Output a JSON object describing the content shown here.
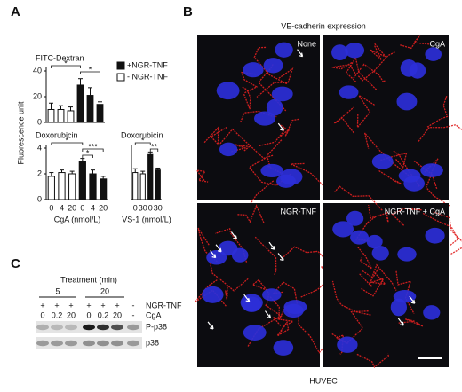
{
  "panel_a": {
    "label": "A",
    "ylabel": "Fluorescence unit"
  },
  "chart_data": [
    {
      "type": "bar",
      "title": "FITC-Dextran",
      "categories": [
        null,
        null,
        null,
        null,
        null,
        null
      ],
      "series": [
        {
          "name": "+NGR-TNF",
          "color": "#111111",
          "values": [
            null,
            null,
            null,
            29,
            21,
            14
          ],
          "errors": [
            null,
            null,
            null,
            5,
            6,
            2
          ]
        },
        {
          "name": "- NGR-TNF",
          "color": "#ffffff",
          "values": [
            10,
            10,
            9,
            null,
            null,
            null
          ],
          "errors": [
            5,
            3,
            3,
            null,
            null,
            null
          ]
        }
      ],
      "ylim": [
        0,
        40
      ],
      "yticks": [
        0,
        20,
        40
      ],
      "legend": "right",
      "annotations": [
        {
          "text": "*",
          "between": [
            0,
            3
          ]
        },
        {
          "text": "*",
          "between": [
            3,
            5
          ]
        }
      ]
    },
    {
      "type": "bar",
      "title": "Doxorubicin",
      "categories": [
        "0",
        "4",
        "20",
        "0",
        "4",
        "20"
      ],
      "xlabel": "CgA (nmol/L)",
      "series": [
        {
          "name": "+NGR-TNF",
          "color": "#111111",
          "values": [
            null,
            null,
            null,
            3.0,
            2.0,
            1.6
          ],
          "errors": [
            null,
            null,
            null,
            0.2,
            0.3,
            0.2
          ]
        },
        {
          "name": "- NGR-TNF",
          "color": "#ffffff",
          "values": [
            1.8,
            2.1,
            2.0,
            null,
            null,
            null
          ],
          "errors": [
            0.3,
            0.2,
            0.2,
            null,
            null,
            null
          ]
        }
      ],
      "ylim": [
        0,
        4
      ],
      "yticks": [
        0,
        2,
        4
      ],
      "annotations": [
        {
          "text": "*",
          "between": [
            0,
            3
          ]
        },
        {
          "text": "***",
          "between": [
            3,
            5
          ]
        },
        {
          "text": "*",
          "between": [
            3,
            4
          ]
        }
      ]
    },
    {
      "type": "bar",
      "title": "Doxorubicin",
      "categories": [
        "0",
        "30",
        "0",
        "30"
      ],
      "xlabel": "VS-1 (nmol/L)",
      "series": [
        {
          "name": "+NGR-TNF",
          "color": "#111111",
          "values": [
            null,
            null,
            3.5,
            2.3
          ],
          "errors": [
            null,
            null,
            0.2,
            0.15
          ]
        },
        {
          "name": "- NGR-TNF",
          "color": "#ffffff",
          "values": [
            2.1,
            2.0,
            null,
            null
          ],
          "errors": [
            0.3,
            0.2,
            null,
            null
          ]
        }
      ],
      "ylim": [
        0,
        4
      ],
      "annotations": [
        {
          "text": "*",
          "between": [
            0,
            2
          ]
        },
        {
          "text": "**",
          "between": [
            2,
            3
          ]
        }
      ]
    }
  ],
  "panel_b": {
    "label": "B",
    "title": "VE-cadherin expression",
    "images": [
      "None",
      "CgA",
      "NGR-TNF",
      "NGR-TNF + CgA"
    ],
    "footer": "HUVEC"
  },
  "panel_c": {
    "label": "C",
    "treatment_label": "Treatment (min)",
    "times": [
      "5",
      "20"
    ],
    "rows": [
      {
        "name": "NGR-TNF",
        "cells": [
          "+",
          "+",
          "+",
          "+",
          "+",
          "+",
          "-"
        ]
      },
      {
        "name": "CgA",
        "cells": [
          "0",
          "0.2",
          "20",
          "0",
          "0.2",
          "20",
          "-"
        ]
      }
    ],
    "blots": [
      "P-p38",
      "p38"
    ]
  }
}
